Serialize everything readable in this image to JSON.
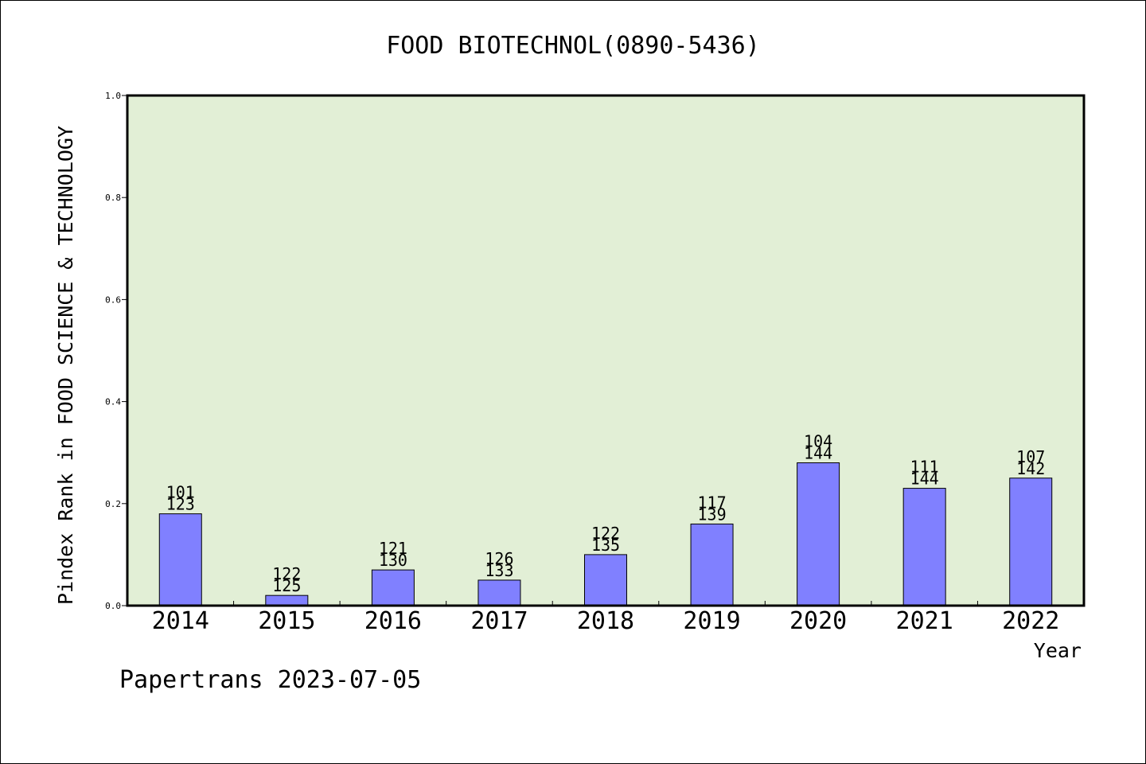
{
  "chart_data": {
    "type": "bar",
    "title": "FOOD BIOTECHNOL(0890-5436)",
    "xlabel": "Year",
    "ylabel": "Pindex Rank in FOOD SCIENCE & TECHNOLOGY",
    "categories": [
      "2014",
      "2015",
      "2016",
      "2017",
      "2018",
      "2019",
      "2020",
      "2021",
      "2022"
    ],
    "values": [
      0.18,
      0.02,
      0.07,
      0.05,
      0.1,
      0.16,
      0.28,
      0.23,
      0.25
    ],
    "rank_labels": [
      "101",
      "122",
      "121",
      "126",
      "122",
      "117",
      "104",
      "111",
      "107"
    ],
    "total_labels": [
      "123",
      "125",
      "130",
      "133",
      "135",
      "139",
      "144",
      "144",
      "142"
    ],
    "ylim": [
      0,
      1.0
    ],
    "yticks": [
      "0.0",
      "0.2",
      "0.4",
      "0.6",
      "0.8",
      "1.0"
    ],
    "ytick_values": [
      0,
      0.2,
      0.4,
      0.6,
      0.8,
      1.0
    ],
    "grid": false,
    "colors": {
      "bar": "#8080ff",
      "plot_background": "#e2efd6"
    }
  },
  "footer": {
    "credit": "Papertrans 2023-07-05"
  }
}
